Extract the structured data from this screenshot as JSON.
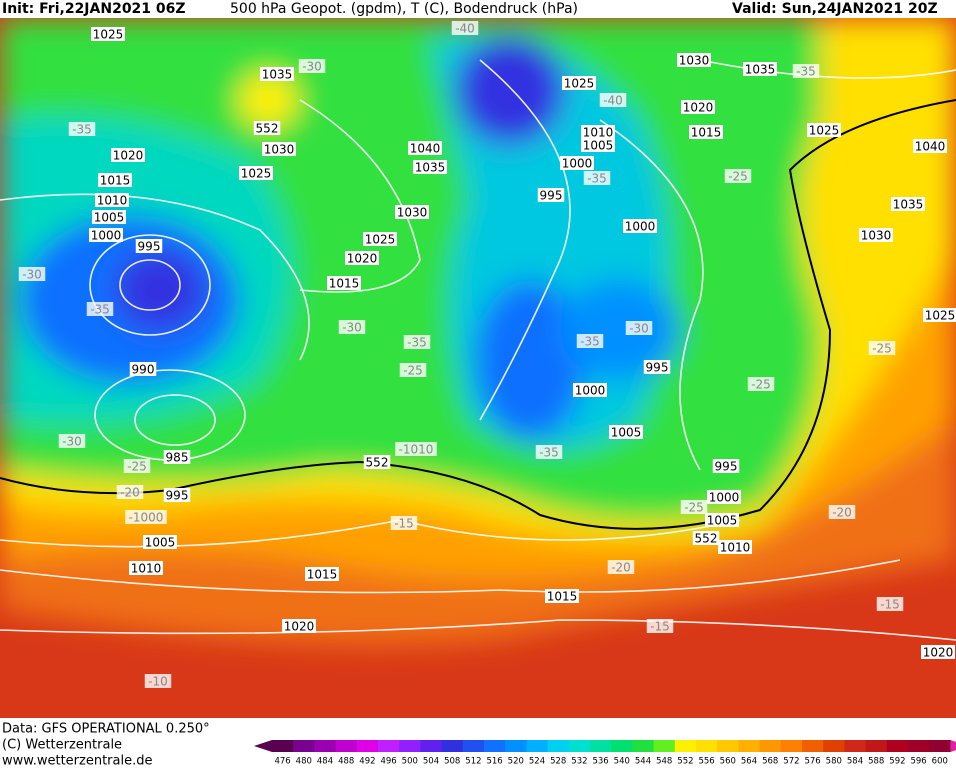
{
  "header": {
    "init": "Init: Fri,22JAN2021 06Z",
    "title": "500 hPa Geopot. (gpdm), T (C), Bodendruck (hPa)",
    "valid": "Valid: Sun,24JAN2021 20Z"
  },
  "footer": {
    "data": "Data: GFS OPERATIONAL 0.250°",
    "copyright": "(C) Wetterzentrale",
    "url": "www.wetterzentrale.de"
  },
  "map_labels": [
    "1025",
    "1035",
    "-30",
    "552",
    "1030",
    "1025",
    "-35",
    "1020",
    "1015",
    "1010",
    "1005",
    "1000",
    "995",
    "-30",
    "-35",
    "990",
    "-30",
    "-25",
    "985",
    "-20",
    "995",
    "-1000",
    "1005",
    "1010",
    "1015",
    "1020",
    "-10",
    "-40",
    "1040",
    "1035",
    "1030",
    "1025",
    "1020",
    "1015",
    "-30",
    "-35",
    "-25",
    "-1010",
    "552",
    "-15",
    "1025",
    "-40",
    "1030",
    "1035",
    "-35",
    "1020",
    "1015",
    "1025",
    "1040",
    "1010",
    "1005",
    "1000",
    "-35",
    "995",
    "-25",
    "1035",
    "1030",
    "1000",
    "-30",
    "-35",
    "995",
    "1025",
    "-25",
    "-25",
    "1000",
    "1005",
    "-35",
    "995",
    "1000",
    "-25",
    "1005",
    "552",
    "1010",
    "-20",
    "-20",
    "1015",
    "-15",
    "-15",
    "1020"
  ],
  "colorbar": {
    "ticks": [
      476,
      480,
      484,
      488,
      492,
      496,
      500,
      504,
      508,
      512,
      516,
      520,
      524,
      528,
      532,
      536,
      540,
      544,
      548,
      552,
      556,
      560,
      564,
      568,
      572,
      576,
      580,
      584,
      588,
      592,
      596,
      600
    ],
    "colors": [
      "#5a0050",
      "#7a0090",
      "#9a00b0",
      "#c000d0",
      "#e000e8",
      "#c020ff",
      "#9020ff",
      "#6020f0",
      "#3030e0",
      "#2050f0",
      "#1070ff",
      "#0090ff",
      "#00b0ff",
      "#00d0f0",
      "#00e0d0",
      "#00e0a0",
      "#00e070",
      "#20e040",
      "#60f020",
      "#fff000",
      "#ffe000",
      "#ffc800",
      "#ffb000",
      "#ff9800",
      "#ff8000",
      "#f06000",
      "#e04000",
      "#d02818",
      "#c01818",
      "#b00020",
      "#a00028",
      "#900030"
    ]
  }
}
